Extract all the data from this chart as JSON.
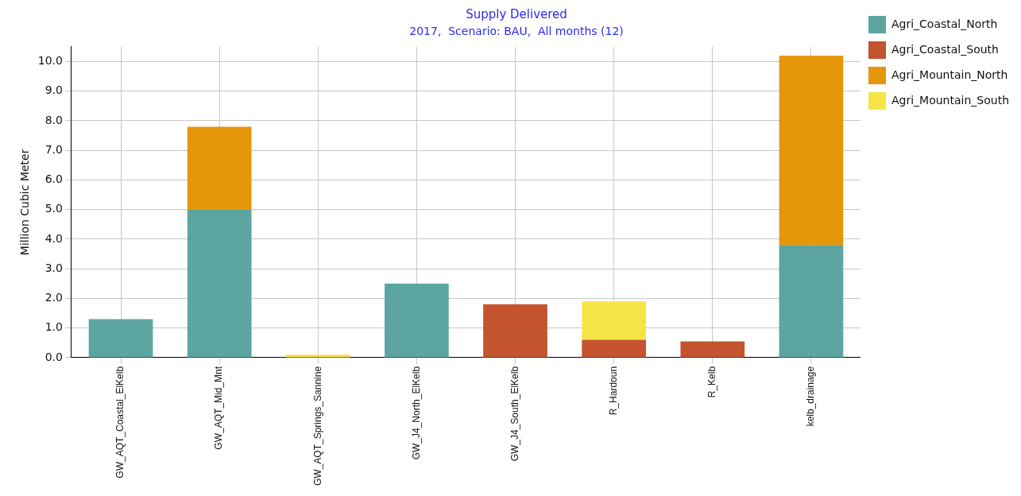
{
  "chart_data": {
    "type": "bar",
    "title": "Supply Delivered",
    "subtitle": "2017,  Scenario: BAU,  All months (12)",
    "ylabel": "Million Cubic Meter",
    "categories": [
      "GW_AQT_Coastal_ElKelb",
      "GW_AQT_Mid_Mnt",
      "GW_AQT_Springs_Sannine",
      "GW_J4_North_ElKelb",
      "GW_J4_South_ElKelb",
      "R_Hardoun",
      "R_Kelb",
      "kelb_drainage"
    ],
    "series": [
      {
        "name": "Agri_Coastal_North",
        "color": "#5ca5a0",
        "values": [
          1.3,
          5.0,
          null,
          2.5,
          null,
          null,
          null,
          3.8
        ]
      },
      {
        "name": "Agri_Coastal_South",
        "color": "#c4532f",
        "values": [
          null,
          null,
          null,
          null,
          1.8,
          0.6,
          0.55,
          null
        ]
      },
      {
        "name": "Agri_Mountain_North",
        "color": "#e6960a",
        "values": [
          null,
          2.8,
          null,
          null,
          null,
          null,
          null,
          6.4
        ]
      },
      {
        "name": "Agri_Mountain_South",
        "color": "#f5e446",
        "values": [
          null,
          null,
          0.1,
          null,
          null,
          1.3,
          null,
          null
        ]
      }
    ],
    "stacked": true,
    "ylim": [
      0,
      10.5
    ],
    "yticks": [
      {
        "value": 0,
        "label": "0.0"
      },
      {
        "value": 1,
        "label": "1.0"
      },
      {
        "value": 2,
        "label": "2.0"
      },
      {
        "value": 3,
        "label": "3.0"
      },
      {
        "value": 4,
        "label": "4.0"
      },
      {
        "value": 5,
        "label": "5.0"
      },
      {
        "value": 6,
        "label": "6.0"
      },
      {
        "value": 7,
        "label": "7.0"
      },
      {
        "value": 8,
        "label": "8.0"
      },
      {
        "value": 9,
        "label": "9.0"
      },
      {
        "value": 10,
        "label": "10.0"
      }
    ],
    "grid": true,
    "legend": "top right"
  }
}
